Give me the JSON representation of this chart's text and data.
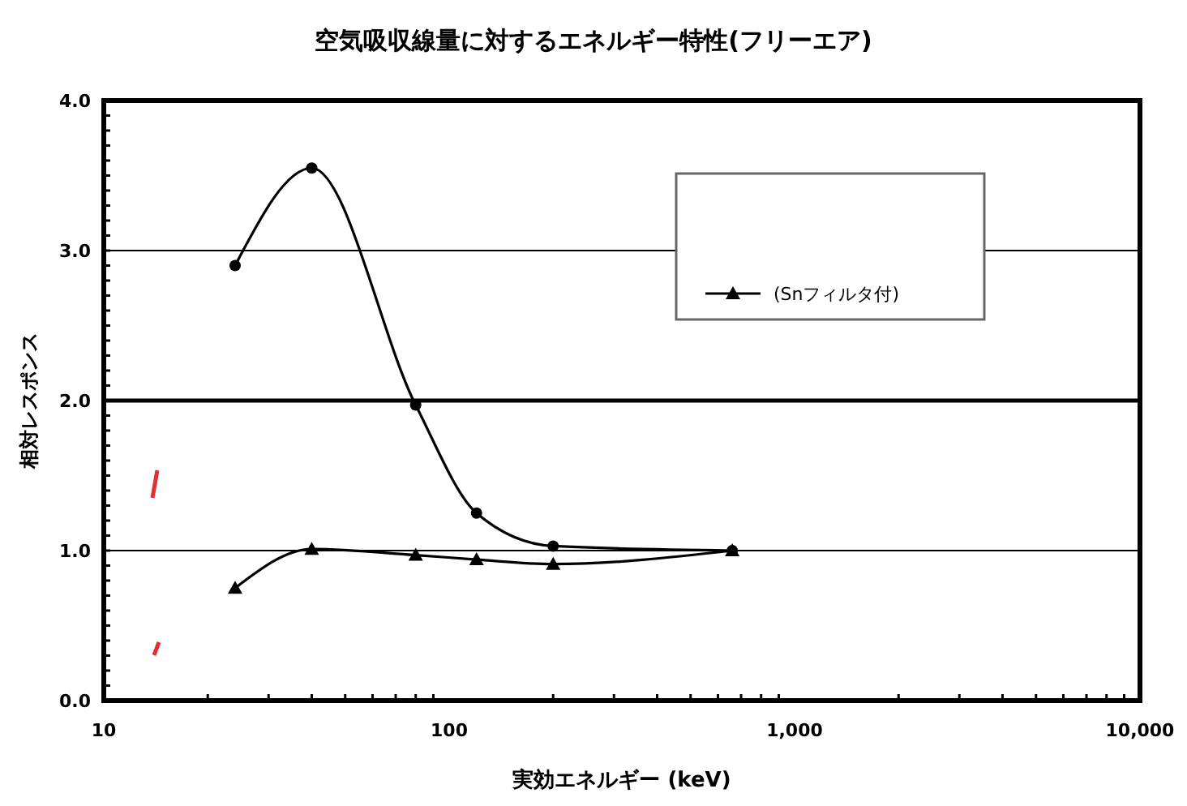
{
  "chart_data": {
    "type": "line",
    "title": "空気吸収線量に対するエネルギー特性(フリーエア)",
    "xlabel": "実効エネルギー (keV)",
    "ylabel": "相対レスポンス",
    "log": "x",
    "xlim": [
      10,
      10000
    ],
    "xticks": [
      10,
      100,
      {
        "value": 1000,
        "label": "1,000"
      },
      {
        "value": 10000,
        "label": "10,000"
      }
    ],
    "ylim": [
      0,
      4
    ],
    "yticks": [
      {
        "value": 0,
        "label": "0.0"
      },
      {
        "value": 1,
        "label": "1.0"
      },
      {
        "value": 2,
        "label": "2.0"
      },
      {
        "value": 3,
        "label": "3.0"
      },
      {
        "value": 4,
        "label": "4.0"
      }
    ],
    "grid": "y",
    "ref_lines": [
      {
        "axis": "y",
        "value": 2,
        "color": "#000000"
      }
    ],
    "legend": "top right",
    "x": [
      24,
      40,
      80,
      120,
      200,
      660
    ],
    "series": [
      {
        "color": "#000000",
        "marker": "circle",
        "values": [
          2.9,
          3.55,
          1.97,
          1.25,
          1.03,
          1.0
        ]
      },
      {
        "name": "(Snフィルタ付)",
        "color": "#000000",
        "marker": "triangle",
        "values": [
          0.75,
          1.01,
          0.97,
          0.94,
          0.91,
          1.0
        ]
      }
    ]
  }
}
